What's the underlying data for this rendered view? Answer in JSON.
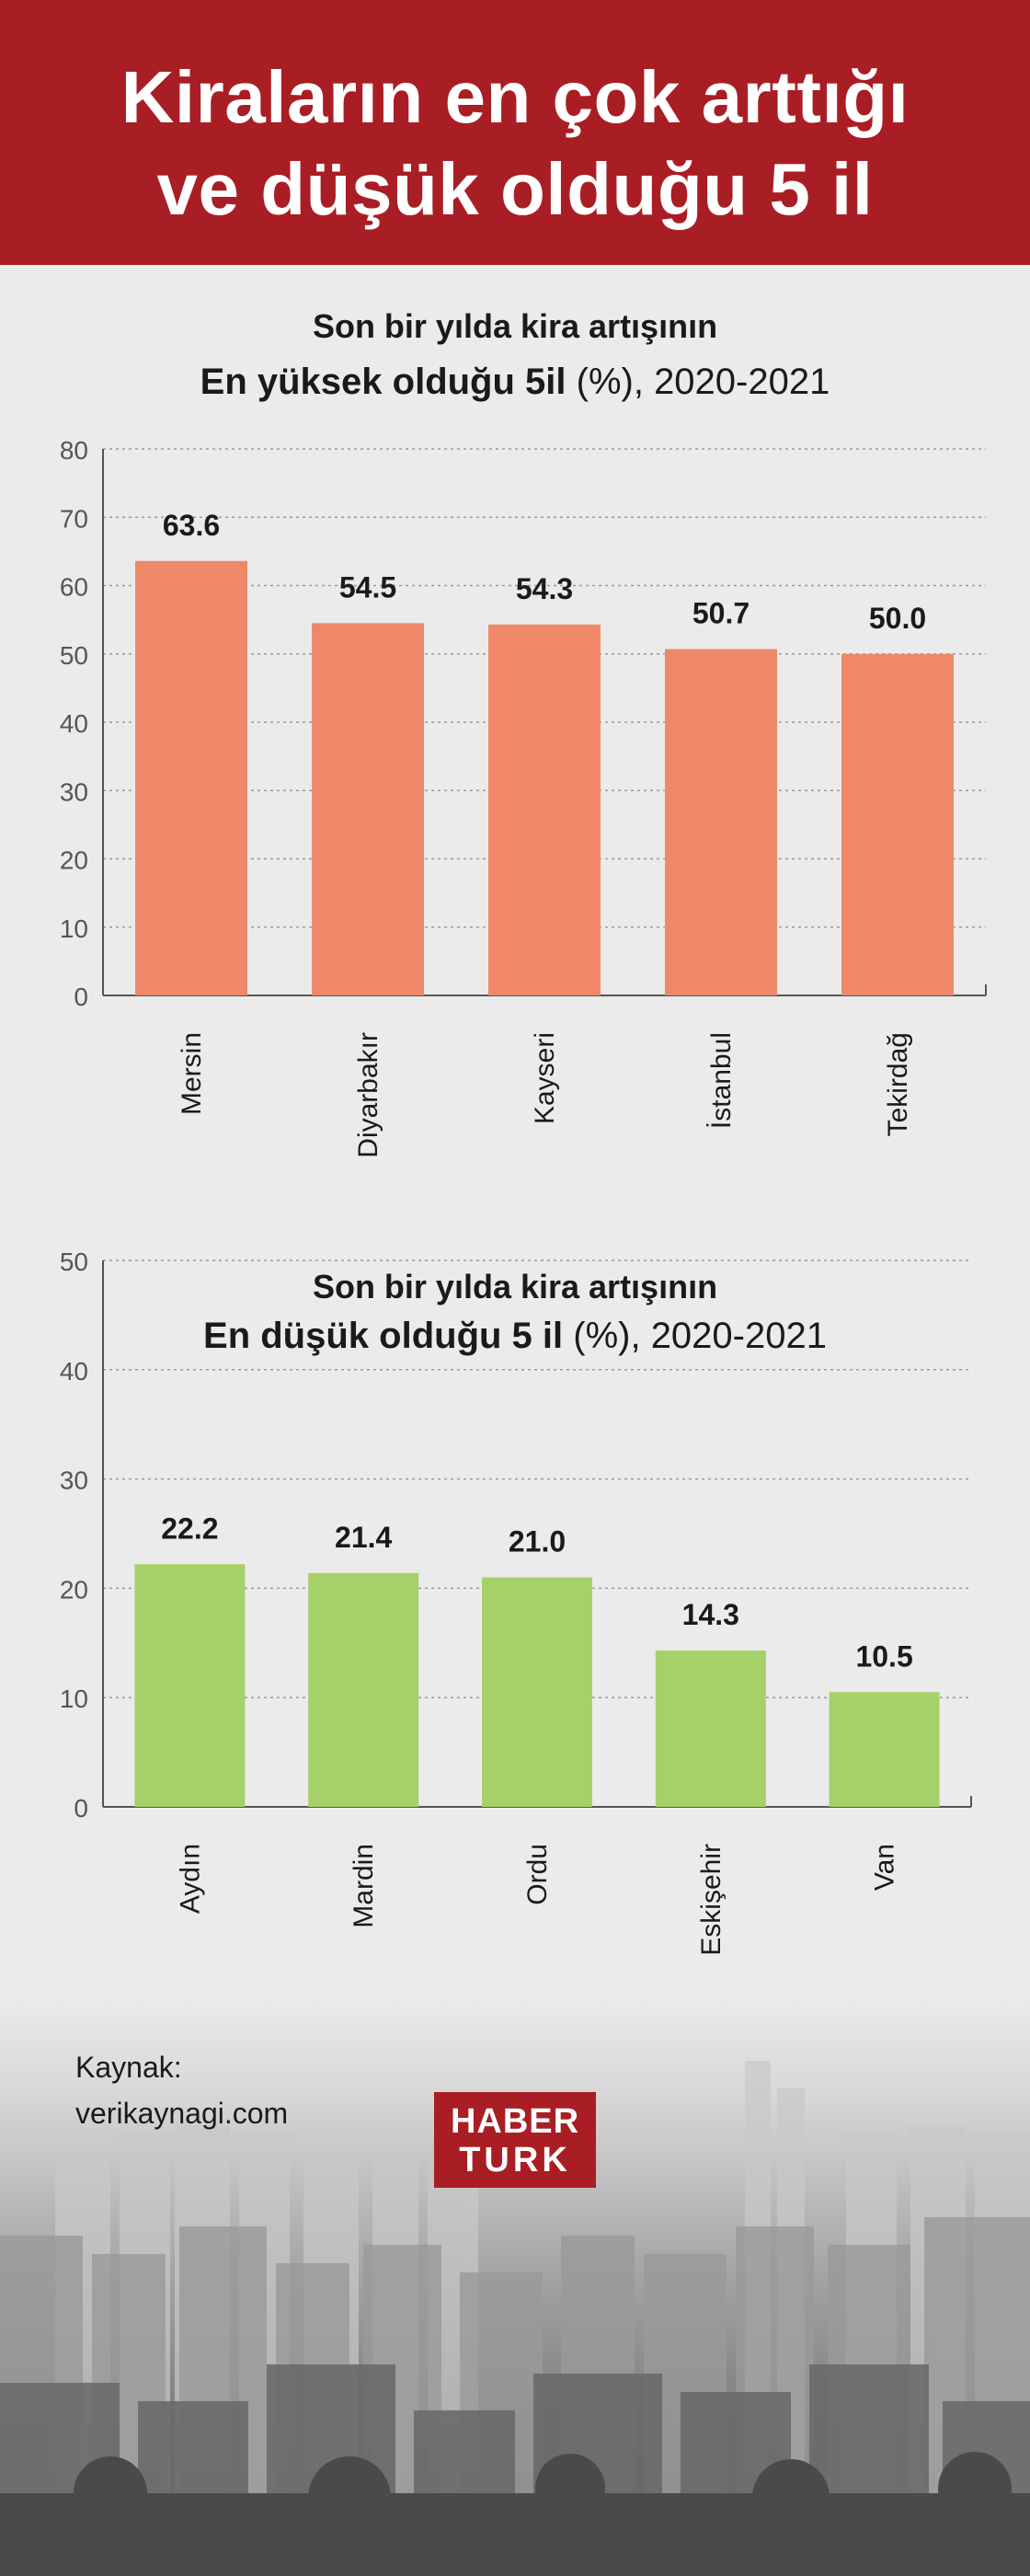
{
  "header": {
    "line1": "Kiraların en çok arttığı",
    "line2": "ve düşük olduğu 5 il"
  },
  "colors": {
    "header_bg": "#a91e24",
    "top_bars": "#ef8868",
    "bottom_bars": "#a6d06a",
    "background": "#ebebeb"
  },
  "chart_data": [
    {
      "type": "bar",
      "subtitle": "Son bir yılda kira artışının",
      "title_bold": "En yüksek olduğu 5il",
      "title_rest": " (%), 2020-2021",
      "categories": [
        "Mersin",
        "Diyarbakır",
        "Kayseri",
        "İstanbul",
        "Tekirdağ"
      ],
      "values": [
        63.6,
        54.5,
        54.3,
        50.7,
        50.0
      ],
      "value_labels": [
        "63.6",
        "54.5",
        "54.3",
        "50.7",
        "50.0"
      ],
      "ylim": [
        0,
        80
      ],
      "yticks": [
        0,
        10,
        20,
        30,
        40,
        50,
        60,
        70,
        80
      ],
      "grid": true,
      "color": "#ef8868"
    },
    {
      "type": "bar",
      "subtitle": "Son bir yılda kira artışının",
      "title_bold": "En düşük olduğu 5 il",
      "title_rest": " (%), 2020-2021",
      "categories": [
        "Aydın",
        "Mardin",
        "Ordu",
        "Eskişehir",
        "Van"
      ],
      "values": [
        22.2,
        21.4,
        21.0,
        14.3,
        10.5
      ],
      "value_labels": [
        "22.2",
        "21.4",
        "21.0",
        "14.3",
        "10.5"
      ],
      "ylim": [
        0,
        50
      ],
      "yticks": [
        0,
        10,
        20,
        30,
        40,
        50
      ],
      "grid": true,
      "color": "#a6d06a"
    }
  ],
  "footer": {
    "source_label": "Kaynak:",
    "source_value": "verikaynagi.com",
    "logo_line1": "HABER",
    "logo_line2": "TURK"
  }
}
